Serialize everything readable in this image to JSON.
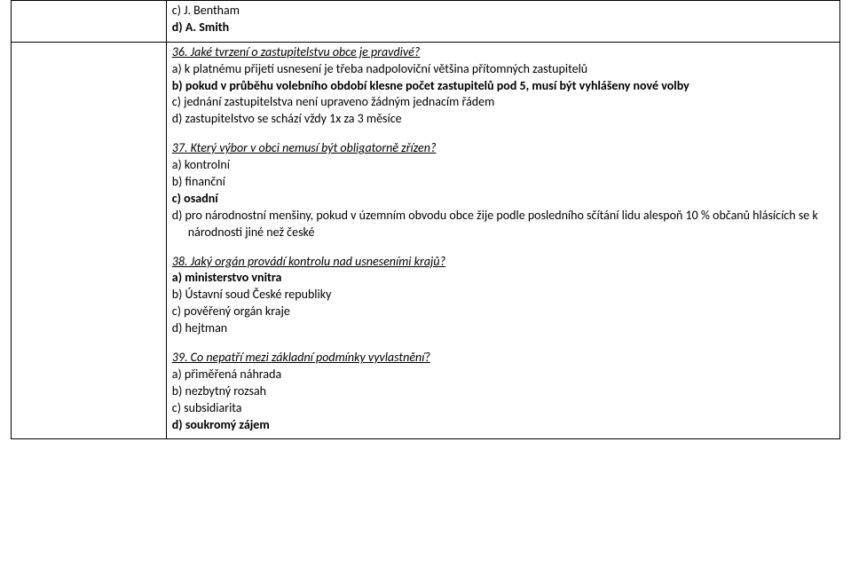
{
  "top": {
    "options": [
      {
        "text": "c) J. Bentham",
        "bold": false
      },
      {
        "text": "d) A. Smith",
        "bold": true
      }
    ]
  },
  "main": {
    "q36": {
      "prompt": "36. Jaké tvrzení o zastupitelstvu obce je pravdivé?",
      "options": [
        {
          "text": "a) k platnému přijetí usnesení je třeba nadpoloviční většina přítomných zastupitelů",
          "bold": false
        },
        {
          "text": "b) pokud v průběhu volebního období klesne počet zastupitelů pod 5, musí být vyhlášeny nové volby",
          "bold": true
        },
        {
          "text": "c) jednání zastupitelstva není upraveno žádným jednacím řádem",
          "bold": false
        },
        {
          "text": "d) zastupitelstvo se schází vždy 1x za 3 měsíce",
          "bold": false
        }
      ]
    },
    "q37": {
      "prompt": "37. Který výbor v obci nemusí být obligatorně zřízen?",
      "options": [
        {
          "text": "a) kontrolní",
          "bold": false
        },
        {
          "text": "b) finanční",
          "bold": false
        },
        {
          "text": "c) osadní",
          "bold": true
        },
        {
          "text": "d) pro národnostní menšiny, pokud v územním obvodu obce žije podle posledního sčítání lidu alespoň 10 % občanů hlásících se k národnosti jiné než české",
          "bold": false
        }
      ]
    },
    "q38": {
      "prompt": "38. Jaký orgán provádí kontrolu nad usneseními krajů?",
      "options": [
        {
          "text": "a) ministerstvo vnitra",
          "bold": true
        },
        {
          "text": "b) Ústavní soud České republiky",
          "bold": false
        },
        {
          "text": "c) pověřený orgán kraje",
          "bold": false
        },
        {
          "text": "d) hejtman",
          "bold": false
        }
      ]
    },
    "q39": {
      "prompt": "39. Co nepatří mezi základní podmínky vyvlastnění?",
      "options": [
        {
          "text": "a) přiměřená náhrada",
          "bold": false
        },
        {
          "text": "b) nezbytný rozsah",
          "bold": false
        },
        {
          "text": "c) subsidiarita",
          "bold": false
        },
        {
          "text": "d) soukromý zájem",
          "bold": true
        }
      ]
    }
  }
}
